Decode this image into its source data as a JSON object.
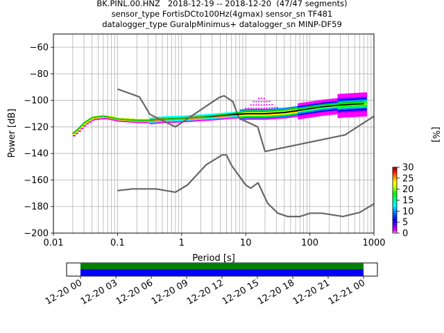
{
  "title_lines": [
    "BK.PINL.00.HNZ   2018-12-19 -- 2018-12-20  (47/47 segments)",
    "sensor_type FortisDCto100Hz(4gmax) sensor_sn TF481",
    "datalogger_type GuralpMinimus+ datalogger_sn MINP-DF59"
  ],
  "chart_data": [
    {
      "type": "heatmap",
      "xlabel": "Period [s]",
      "ylabel": "Power [dB]",
      "xscale": "log",
      "xlim": [
        0.01,
        1000
      ],
      "ylim": [
        -200,
        -50
      ],
      "xticks": [
        0.01,
        0.1,
        1,
        10,
        100,
        1000
      ],
      "xtick_labels": [
        "0.01",
        "0.1",
        "1",
        "10",
        "100",
        "1000"
      ],
      "yticks": [
        -200,
        -180,
        -160,
        -140,
        -120,
        -100,
        -80,
        -60
      ],
      "ytick_labels": [
        "−200",
        "−180",
        "−160",
        "−140",
        "−120",
        "−100",
        "−80",
        "−60"
      ],
      "grid": true,
      "colorbar": {
        "label": "[%]",
        "range": [
          0,
          30
        ],
        "ticks": [
          0,
          5,
          10,
          15,
          20,
          25,
          30
        ],
        "tick_labels": [
          "0",
          "5",
          "10",
          "15",
          "20",
          "25",
          "30"
        ]
      },
      "series": [
        {
          "name": "NHNM",
          "color": "#666666",
          "x": [
            0.1,
            0.22,
            0.32,
            0.8,
            3.8,
            4.6,
            6.3,
            7.9,
            15.4,
            20,
            354.8,
            1000
          ],
          "y": [
            -91.5,
            -97.4,
            -110.5,
            -120,
            -98,
            -96.5,
            -101,
            -113.5,
            -120,
            -138.5,
            -126,
            -112
          ]
        },
        {
          "name": "NLNM",
          "color": "#666666",
          "x": [
            0.1,
            0.17,
            0.4,
            0.8,
            1.24,
            2.4,
            4.3,
            5,
            6,
            10,
            12,
            15.6,
            21.9,
            31.6,
            45,
            70,
            101,
            154,
            328,
            600,
            1000
          ],
          "y": [
            -168,
            -166.7,
            -166.7,
            -169.2,
            -163.7,
            -148.6,
            -141.1,
            -141.1,
            -149,
            -163.8,
            -166.2,
            -162.1,
            -177.5,
            -185,
            -187.5,
            -187.5,
            -185,
            -185,
            -187.5,
            -184.4,
            -178
          ]
        },
        {
          "name": "mode",
          "color": "#000000",
          "x": [
            0.02,
            0.025,
            0.03,
            0.04,
            0.06,
            0.08,
            0.1,
            0.2,
            0.3,
            0.5,
            1,
            2,
            3,
            5,
            10,
            20,
            40,
            80,
            150,
            300,
            700
          ],
          "y": [
            -125,
            -121,
            -117,
            -113,
            -112,
            -113,
            -114,
            -115,
            -115,
            -114,
            -113.5,
            -112.5,
            -112,
            -111,
            -110,
            -110,
            -109,
            -107,
            -105,
            -103.5,
            -102.5
          ]
        },
        {
          "name": "mean",
          "color": "#00cc00",
          "x": [
            0.02,
            0.025,
            0.03,
            0.04,
            0.06,
            0.08,
            0.1,
            0.2,
            0.3,
            0.5,
            1,
            2,
            3,
            5,
            10,
            20,
            40,
            80,
            150,
            300,
            700
          ],
          "y": [
            -125,
            -121,
            -117,
            -113,
            -112,
            -113,
            -114,
            -115,
            -115,
            -114,
            -113.5,
            -112.5,
            -111.5,
            -110.5,
            -108.5,
            -108.5,
            -107.5,
            -105.5,
            -103.5,
            -102,
            -101
          ]
        }
      ]
    },
    {
      "type": "bar",
      "xtick_labels": [
        "12-20 00",
        "12-20 03",
        "12-20 06",
        "12-20 09",
        "12-20 12",
        "12-20 15",
        "12-20 18",
        "12-20 21",
        "12-21 00"
      ],
      "x_start": "12-20 00",
      "x_end": "12-21 00",
      "colors": [
        "#008000",
        "#0000ff"
      ]
    }
  ]
}
